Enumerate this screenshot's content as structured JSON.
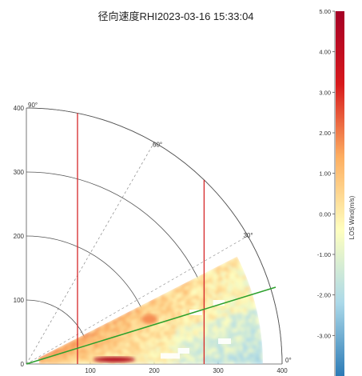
{
  "chart_data": {
    "type": "heatmap",
    "subtype": "polar-rhi",
    "title": "径向速度RHI2023-03-16 15:33:04",
    "radial_ticks": [
      100,
      200,
      300,
      400
    ],
    "height_ticks": [
      0,
      100,
      200,
      300,
      400
    ],
    "range_ticks": [
      100,
      200,
      300,
      400
    ],
    "angle_labels": [
      "0°",
      "30°",
      "60°",
      "90°"
    ],
    "angle_lines_deg": [
      30,
      60
    ],
    "rings": [
      100,
      200,
      300,
      400
    ],
    "max_range": 400,
    "colorbar": {
      "label": "LOS Wind(m/s)",
      "min": -4,
      "max": 5,
      "ticks": [
        "5.00",
        "4.00",
        "3.00",
        "2.00",
        "1.00",
        "0.00",
        "-1.00",
        "-2.00",
        "-3.00"
      ],
      "tick_values": [
        5,
        4,
        3,
        2,
        1,
        0,
        -1,
        -2,
        -3
      ],
      "colors": [
        "#2c7bb6",
        "#abd9e9",
        "#ffffbf",
        "#fdae61",
        "#d7191c",
        "#a50026"
      ]
    },
    "scan": {
      "min_elevation_deg": 0,
      "max_elevation_deg": 27,
      "min_range": 20,
      "max_range": 370
    },
    "reference_lines": [
      {
        "type": "vertical",
        "x": 80,
        "color": "#d62728"
      },
      {
        "type": "vertical",
        "x": 278,
        "color": "#d62728"
      },
      {
        "type": "slope",
        "x0": 0,
        "y0": 0,
        "x1": 390,
        "y1": 120,
        "color": "#2ca02c"
      }
    ],
    "features": [
      {
        "kind": "strong-positive-band",
        "x_start": 105,
        "x_end": 170,
        "y": 7,
        "value": 4.5
      },
      {
        "kind": "positive-patch",
        "x_start": 180,
        "x_end": 205,
        "y": 70,
        "value": 1.8
      }
    ]
  }
}
